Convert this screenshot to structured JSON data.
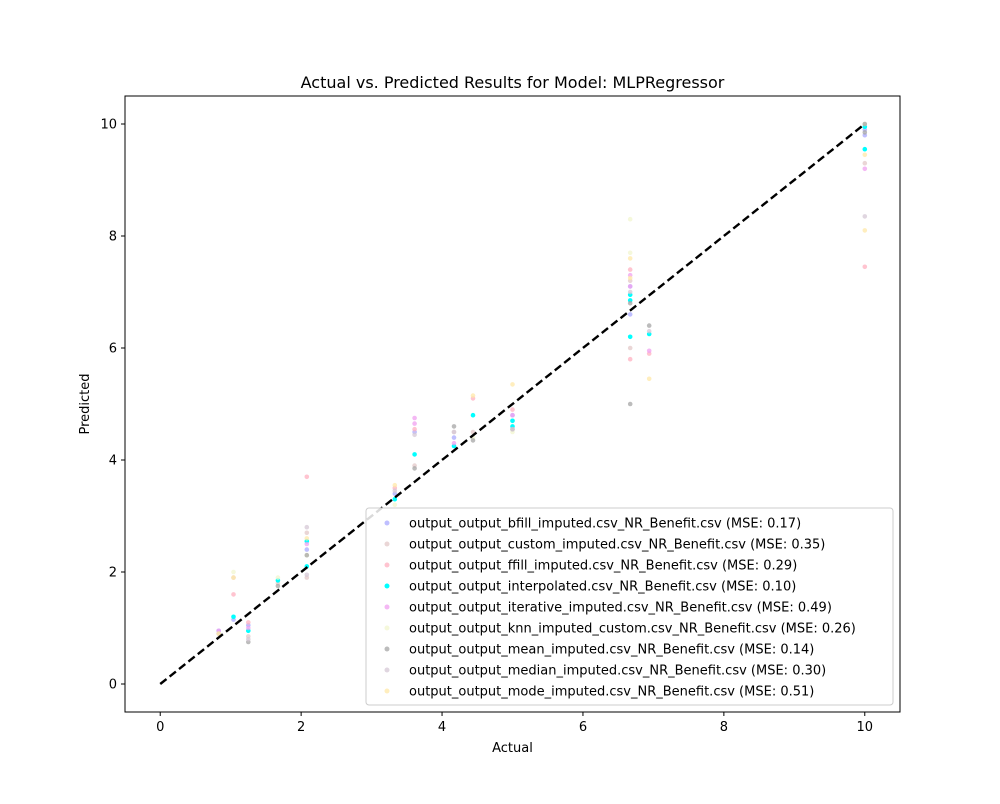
{
  "chart_data": {
    "type": "scatter",
    "title": "Actual vs. Predicted Results for Model: MLPRegressor",
    "xlabel": "Actual",
    "ylabel": "Predicted",
    "xlim": [
      -0.5,
      10.5
    ],
    "ylim": [
      -0.5,
      10.5
    ],
    "xticks": [
      0,
      2,
      4,
      6,
      8,
      10
    ],
    "yticks": [
      0,
      2,
      4,
      6,
      8,
      10
    ],
    "grid": false,
    "legend_position": "lower-right",
    "reference_line": {
      "style": "dashed",
      "color": "#000000",
      "from": [
        0,
        0
      ],
      "to": [
        10,
        10
      ]
    },
    "series": [
      {
        "name": "output_output_bfill_imputed.csv_NR_Benefit.csv (MSE: 0.17)",
        "color": "#a9a9ff",
        "x": [
          0.83,
          1.04,
          1.25,
          2.08,
          3.33,
          3.61,
          4.17,
          5.0,
          6.67,
          6.67,
          10.0,
          10.0
        ],
        "y": [
          0.95,
          1.15,
          1.05,
          2.4,
          3.4,
          4.5,
          4.4,
          4.8,
          6.6,
          7.1,
          9.8,
          9.9
        ]
      },
      {
        "name": "output_output_custom_imputed.csv_NR_Benefit.csv (MSE: 0.35)",
        "color": "#e3c8c8",
        "x": [
          0.83,
          1.04,
          1.25,
          1.67,
          2.08,
          2.08,
          3.61,
          4.17,
          4.44,
          5.0,
          6.67,
          6.67,
          10.0
        ],
        "y": [
          0.9,
          1.9,
          0.85,
          1.8,
          2.7,
          1.9,
          3.9,
          4.5,
          4.5,
          4.7,
          7.2,
          6.0,
          9.3
        ]
      },
      {
        "name": "output_output_ffill_imputed.csv_NR_Benefit.csv (MSE: 0.29)",
        "color": "#ffb0c0",
        "x": [
          1.04,
          1.25,
          2.08,
          3.33,
          3.61,
          4.44,
          5.0,
          6.67,
          6.67,
          6.94,
          10.0
        ],
        "y": [
          1.6,
          1.1,
          3.7,
          3.5,
          4.55,
          5.1,
          4.9,
          5.8,
          7.4,
          5.9,
          7.45
        ]
      },
      {
        "name": "output_output_interpolated.csv_NR_Benefit.csv (MSE: 0.10)",
        "color": "#00ffff",
        "x": [
          1.04,
          1.25,
          1.67,
          2.08,
          2.08,
          3.33,
          3.61,
          4.17,
          4.44,
          5.0,
          5.0,
          6.67,
          6.67,
          6.67,
          6.94,
          10.0,
          10.0
        ],
        "y": [
          1.2,
          0.95,
          1.85,
          2.55,
          2.1,
          3.3,
          4.1,
          4.25,
          4.8,
          4.6,
          4.7,
          6.95,
          6.85,
          6.2,
          6.25,
          9.55,
          9.95
        ]
      },
      {
        "name": "output_output_iterative_imputed.csv_NR_Benefit.csv (MSE: 0.49)",
        "color": "#f0a0f0",
        "x": [
          0.83,
          1.25,
          2.08,
          3.61,
          3.61,
          4.17,
          5.0,
          6.67,
          6.67,
          6.94,
          10.0
        ],
        "y": [
          0.95,
          1.0,
          2.5,
          4.75,
          4.65,
          4.3,
          4.8,
          7.1,
          7.3,
          5.95,
          9.2
        ]
      },
      {
        "name": "output_output_knn_imputed_custom.csv_NR_Benefit.csv (MSE: 0.26)",
        "color": "#f2f5cf",
        "x": [
          1.04,
          1.67,
          2.08,
          3.33,
          4.44,
          5.0,
          6.67,
          6.67,
          10.0
        ],
        "y": [
          2.0,
          1.9,
          2.3,
          3.2,
          4.4,
          4.5,
          7.7,
          8.3,
          10.0
        ]
      },
      {
        "name": "output_output_mean_imputed.csv_NR_Benefit.csv (MSE: 0.14)",
        "color": "#a6a6a6",
        "x": [
          1.25,
          1.67,
          2.08,
          3.61,
          4.17,
          4.44,
          5.0,
          6.67,
          6.67,
          6.94,
          10.0,
          10.0
        ],
        "y": [
          0.75,
          1.75,
          2.3,
          3.85,
          4.6,
          4.35,
          4.55,
          5.0,
          6.8,
          6.4,
          10.0,
          9.85
        ]
      },
      {
        "name": "output_output_median_imputed.csv_NR_Benefit.csv (MSE: 0.30)",
        "color": "#d5c8d5",
        "x": [
          0.83,
          1.25,
          2.08,
          2.08,
          3.33,
          3.61,
          4.17,
          5.0,
          6.67,
          6.94,
          10.0
        ],
        "y": [
          0.9,
          0.8,
          2.8,
          1.95,
          3.45,
          4.45,
          4.5,
          4.55,
          7.0,
          6.3,
          8.35
        ]
      },
      {
        "name": "output_output_mode_imputed.csv_NR_Benefit.csv (MSE: 0.51)",
        "color": "#ffe8a8",
        "x": [
          0.83,
          1.04,
          2.08,
          3.33,
          4.44,
          5.0,
          6.67,
          6.67,
          6.94,
          10.0,
          10.0
        ],
        "y": [
          0.9,
          1.9,
          2.6,
          3.55,
          5.15,
          5.35,
          7.6,
          7.25,
          5.45,
          8.1,
          9.45
        ]
      }
    ]
  }
}
